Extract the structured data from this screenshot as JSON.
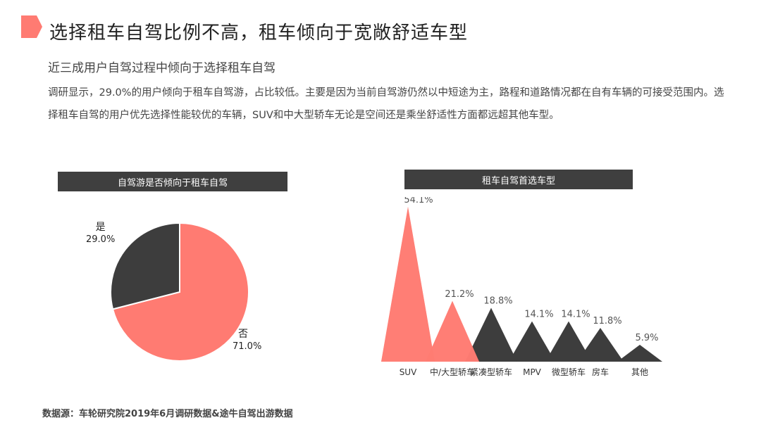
{
  "header": {
    "title": "选择租车自驾比例不高，租车倾向于宽敞舒适车型",
    "subtitle": "近三成用户自驾过程中倾向于选择租车自驾",
    "body": "调研显示，29.0%的用户倾向于租车自驾游，占比较低。主要是因为当前自驾游仍然以中短途为主，路程和道路情况都在自有车辆的可接受范围内。选择租车自驾的用户优先选择性能较优的车辆，SUV和中大型轿车无论是空间还是乘坐舒适性方面都远超其他车型。"
  },
  "colors": {
    "accent": "#ff7b72",
    "dark": "#3d3d3d"
  },
  "footer": {
    "source": "数据源：车轮研究院2019年6月调研数据&途牛自驾出游数据"
  },
  "chart_data": [
    {
      "type": "pie",
      "title": "自驾游是否倾向于租车自驾",
      "slices": [
        {
          "label": "是",
          "value": 29.0,
          "display": "29.0%",
          "color": "#3d3d3d"
        },
        {
          "label": "否",
          "value": 71.0,
          "display": "71.0%",
          "color": "#ff7b72"
        }
      ]
    },
    {
      "type": "bar",
      "title": "租车自驾首选车型",
      "categories": [
        "SUV",
        "中/大型轿车",
        "紧凑型轿车",
        "MPV",
        "微型轿车",
        "房车",
        "其他"
      ],
      "values": [
        54.1,
        21.2,
        18.8,
        14.1,
        14.1,
        11.8,
        5.9
      ],
      "value_labels": [
        "54.1%",
        "21.2%",
        "18.8%",
        "14.1%",
        "14.1%",
        "11.8%",
        "5.9%"
      ],
      "colors": [
        "#ff7b72",
        "#ff7b72",
        "#3d3d3d",
        "#3d3d3d",
        "#3d3d3d",
        "#3d3d3d",
        "#3d3d3d"
      ]
    }
  ]
}
